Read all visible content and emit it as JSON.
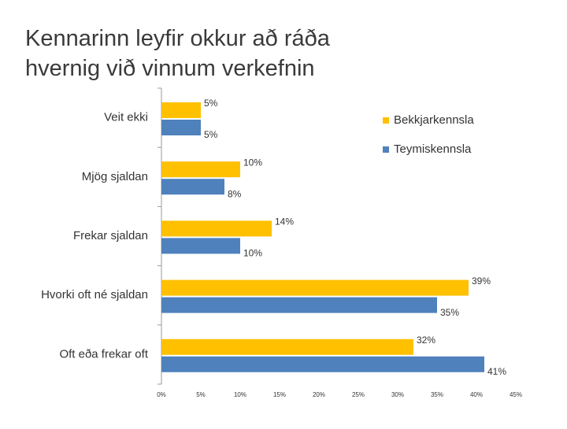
{
  "title": "Kennarinn leyfir okkur að ráða hvernig við vinnum verkefnin",
  "chart_data": {
    "type": "hbar",
    "categories": [
      "Veit ekki",
      "Mjög sjaldan",
      "Frekar sjaldan",
      "Hvorki oft né sjaldan",
      "Oft eða frekar oft"
    ],
    "series": [
      {
        "name": "Bekkjarkennsla",
        "color": "#FFC000",
        "values": [
          5,
          10,
          14,
          39,
          32
        ],
        "value_labels": [
          "5%",
          "10%",
          "14%",
          "39%",
          "32%"
        ]
      },
      {
        "name": "Teymiskennsla",
        "color": "#4F81BD",
        "values": [
          5,
          8,
          10,
          35,
          41
        ],
        "value_labels": [
          "5%",
          "8%",
          "10%",
          "35%",
          "41%"
        ]
      }
    ],
    "xlim": [
      0,
      45
    ],
    "xticks": [
      {
        "value": 0,
        "label": "0%"
      },
      {
        "value": 5,
        "label": "5%"
      },
      {
        "value": 10,
        "label": "10%"
      },
      {
        "value": 15,
        "label": "15%"
      },
      {
        "value": 20,
        "label": "20%"
      },
      {
        "value": 25,
        "label": "25%"
      },
      {
        "value": 30,
        "label": "30%"
      },
      {
        "value": 35,
        "label": "35%"
      },
      {
        "value": 40,
        "label": "40%"
      },
      {
        "value": 45,
        "label": "45%"
      }
    ],
    "legend": "top-right"
  }
}
